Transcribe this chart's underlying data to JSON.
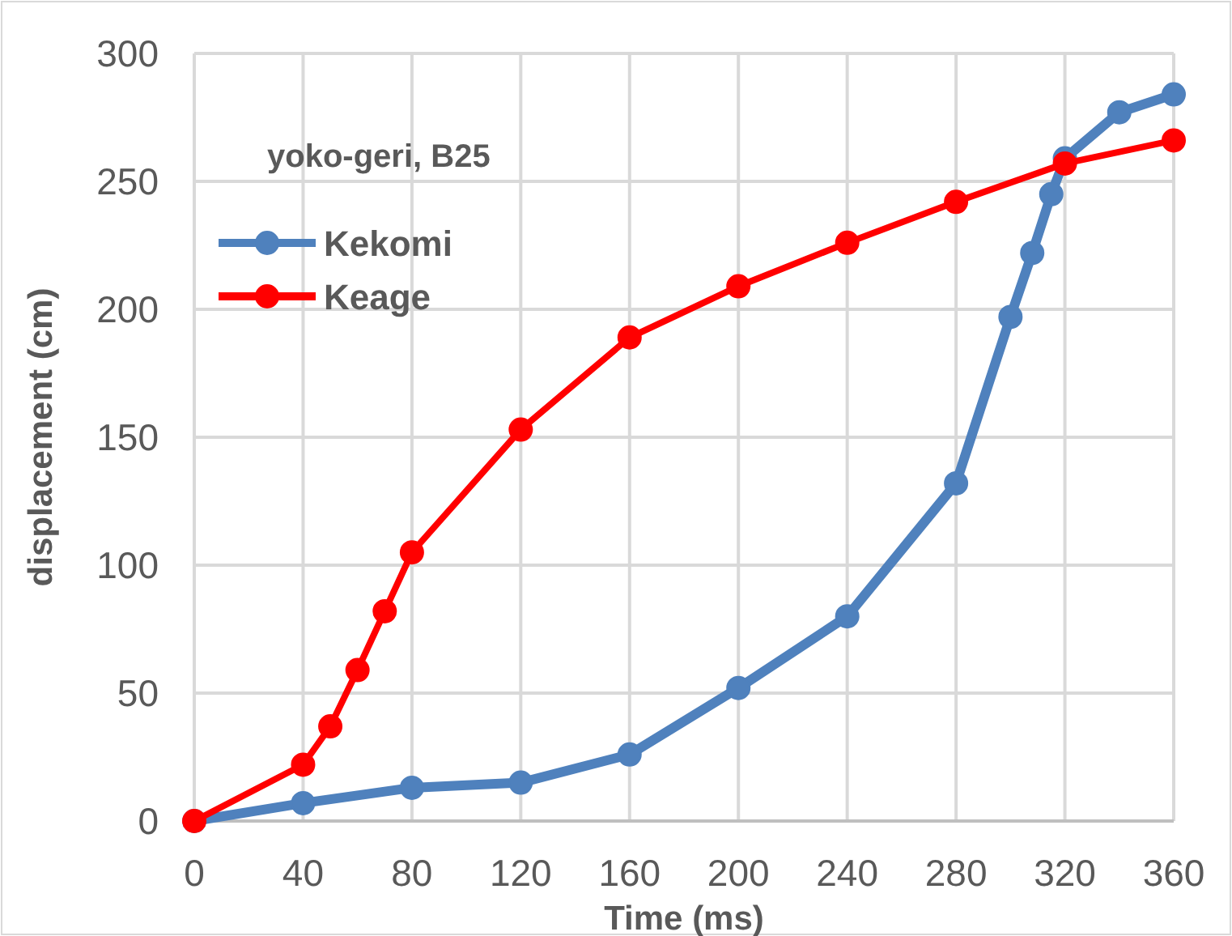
{
  "chart_data": {
    "type": "line",
    "title": "yoko-geri, B25",
    "xlabel": "Time (ms)",
    "ylabel": "displacement (cm)",
    "xlim": [
      0,
      360
    ],
    "xticks": [
      0,
      40,
      80,
      120,
      160,
      200,
      240,
      280,
      320,
      360
    ],
    "ylim": [
      0,
      300
    ],
    "yticks": [
      0,
      50,
      100,
      150,
      200,
      250,
      300
    ],
    "grid": true,
    "legend": "top left",
    "marker": "circle",
    "series": [
      {
        "name": "Kekomi",
        "color": "#4f81bd",
        "x": [
          0,
          40,
          80,
          120,
          160,
          200,
          240,
          280,
          300,
          308,
          315,
          320,
          340,
          360
        ],
        "values": [
          0,
          7,
          13,
          15,
          26,
          52,
          80,
          132,
          197,
          222,
          245,
          259,
          277,
          284
        ]
      },
      {
        "name": "Keage",
        "color": "#ff0000",
        "x": [
          0,
          40,
          50,
          60,
          70,
          80,
          120,
          160,
          200,
          240,
          280,
          320,
          360
        ],
        "values": [
          0,
          22,
          37,
          59,
          82,
          105,
          153,
          189,
          209,
          226,
          242,
          257,
          266
        ]
      }
    ]
  }
}
